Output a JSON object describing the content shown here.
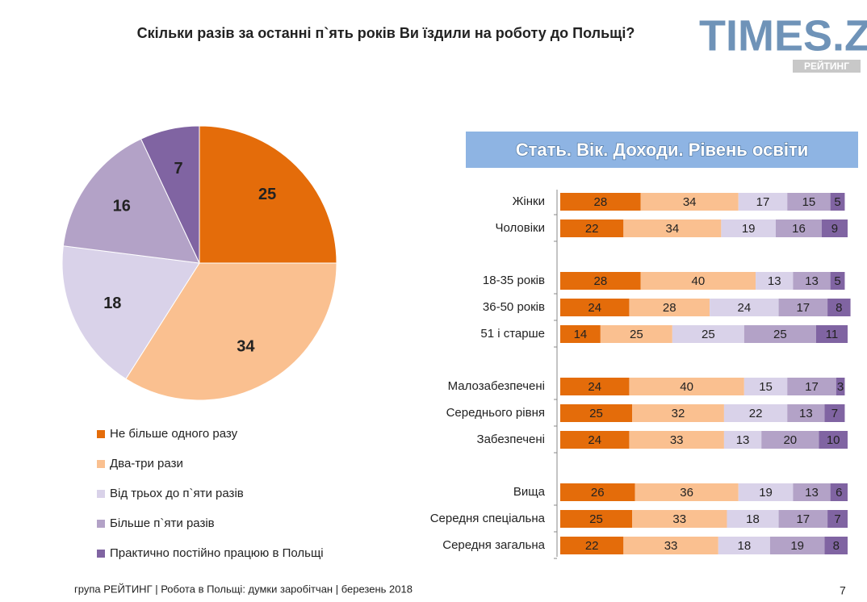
{
  "title": "Скільки разів за останні п`ять років Ви їздили на роботу до Польщі?",
  "logo": {
    "text": "TIMES.ZT",
    "sub": "РЕЙТИНГ"
  },
  "footer": "група РЕЙТИНГ  | Робота в Польщі: думки заробітчан  |  березень 2018",
  "page_number": 7,
  "chart_data": [
    {
      "type": "pie",
      "categories": [
        "Не більше одного разу",
        "Два-три рази",
        "Від трьох до п`яти разів",
        "Більше п`яти разів",
        "Практично постійно працюю в Польщі"
      ],
      "values": [
        25,
        34,
        18,
        16,
        7
      ],
      "colors": [
        "#e46c0a",
        "#fac090",
        "#d9d2e9",
        "#b3a2c7",
        "#8064a2"
      ]
    },
    {
      "type": "bar",
      "title": "Стать. Вік. Доходи. Рівень освіти",
      "orientation": "horizontal",
      "stacked": true,
      "categories": [
        "Жінки",
        "Чоловіки",
        "18-35 років",
        "36-50 років",
        "51 і старше",
        "Малозабезпечені",
        "Середнього рівня",
        "Забезпечені",
        "Вища",
        "Середня спеціальна",
        "Середня загальна"
      ],
      "xlim": [
        0,
        100
      ],
      "series": [
        {
          "color": "#e46c0a",
          "values": [
            28,
            22,
            28,
            24,
            14,
            24,
            25,
            24,
            26,
            25,
            22
          ]
        },
        {
          "color": "#fac090",
          "values": [
            34,
            34,
            40,
            28,
            25,
            40,
            32,
            33,
            36,
            33,
            33
          ]
        },
        {
          "color": "#d9d2e9",
          "values": [
            17,
            19,
            13,
            24,
            25,
            15,
            22,
            13,
            19,
            18,
            18
          ]
        },
        {
          "color": "#b3a2c7",
          "values": [
            15,
            16,
            13,
            17,
            25,
            17,
            13,
            20,
            13,
            17,
            19
          ]
        },
        {
          "color": "#8064a2",
          "values": [
            5,
            9,
            5,
            8,
            11,
            3,
            7,
            10,
            6,
            7,
            8
          ]
        }
      ]
    }
  ]
}
